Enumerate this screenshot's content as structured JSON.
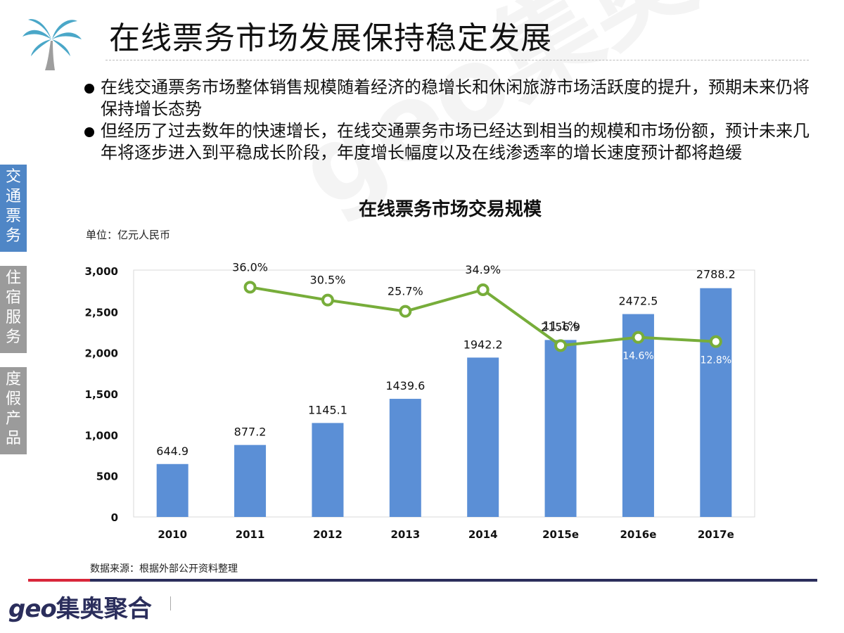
{
  "title": "在线票务市场发展保持稳定发展",
  "bullets": [
    "在线交通票务市场整体销售规模随着经济的稳增长和休闲旅游市场活跃度的提升，预期未来仍将保持增长态势",
    "但经历了过去数年的快速增长，在线交通票务市场已经达到相当的规模和市场份额，预计未来几年将逐步进入到平稳成长阶段，年度增长幅度以及在线渗透率的增长速度预计都将趋缓"
  ],
  "side_tabs": [
    {
      "label": "交通票务",
      "chars": [
        "交",
        "通",
        "票",
        "务"
      ],
      "active": true
    },
    {
      "label": "住宿服务",
      "chars": [
        "住",
        "宿",
        "服",
        "务"
      ],
      "active": false
    },
    {
      "label": "度假产品",
      "chars": [
        "度",
        "假",
        "产",
        "品"
      ],
      "active": false
    }
  ],
  "unit": "单位：亿元人民币",
  "source": "数据来源：根据外部公开资料整理",
  "watermark": "geo集奥聚合",
  "logo": {
    "latin": "geo",
    "cn": "集奥聚合"
  },
  "colors": {
    "bar": "#5b8fd6",
    "line": "#77ad3a",
    "active_tab": "#4f86c6",
    "inactive_tab": "#9b9b9b",
    "footer": "#2b2e5c",
    "footer_accent": "#d9263a"
  },
  "chart_data": {
    "type": "bar",
    "title": "在线票务市场交易规模",
    "categories": [
      "2010",
      "2011",
      "2012",
      "2013",
      "2014",
      "2015e",
      "2016e",
      "2017e"
    ],
    "series": [
      {
        "type": "bar",
        "values": [
          644.9,
          877.2,
          1145.1,
          1439.6,
          1942.2,
          2156.9,
          2472.5,
          2788.2
        ],
        "labels": [
          "644.9",
          "877.2",
          "1145.1",
          "1439.6",
          "1942.2",
          "2156.9",
          "2472.5",
          "2788.2"
        ]
      },
      {
        "type": "line",
        "values": [
          null,
          36.0,
          30.5,
          25.7,
          34.9,
          11.1,
          14.6,
          12.8
        ],
        "labels": [
          "",
          "36.0%",
          "30.5%",
          "25.7%",
          "34.9%",
          "11.1%",
          "14.6%",
          "12.8%"
        ]
      }
    ],
    "y_ticks": [
      "0",
      "500",
      "1,000",
      "1,500",
      "2,000",
      "2,500",
      "3,000"
    ],
    "ylim": [
      0,
      3000
    ],
    "y2lim": [
      -62,
      43
    ],
    "grid": false,
    "legend": "none"
  }
}
